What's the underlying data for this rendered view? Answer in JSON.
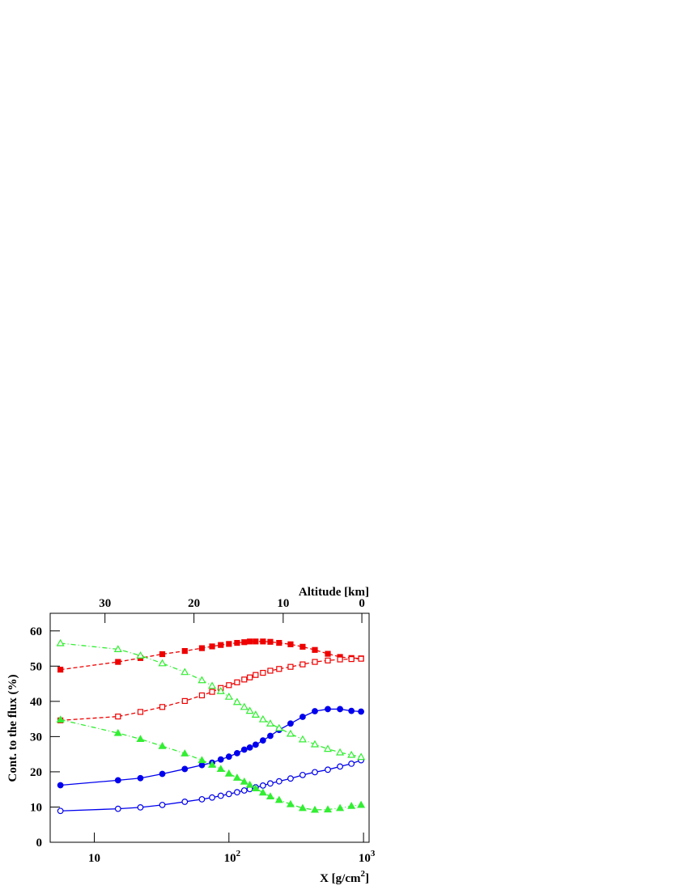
{
  "chart_data": {
    "type": "line",
    "xlabel": "X [g/cm^2]",
    "ylabel": "Cont. to the flux (%)",
    "x2label": "Altitude [km]",
    "xscale": "log",
    "xlim": [
      4.7,
      1100
    ],
    "xticks": [
      10,
      {
        "value": 100,
        "label": "10^2"
      },
      {
        "value": 1000,
        "label": "10^3"
      }
    ],
    "ylim": [
      0,
      65
    ],
    "yticks": [
      0,
      10,
      20,
      30,
      40,
      50,
      60
    ],
    "x2ticks": [
      30,
      20,
      10,
      0
    ],
    "x2ticks_at": [
      12,
      55,
      253,
      972
    ],
    "x": [
      5.6,
      15,
      22,
      32,
      47,
      63,
      75,
      87,
      100,
      115,
      130,
      143,
      158,
      179,
      203,
      236,
      287,
      353,
      435,
      543,
      669,
      813,
      959
    ],
    "series": [
      {
        "color": "#0000ee",
        "dash": "solid",
        "marker": "circle",
        "filled": true,
        "values": [
          16.2,
          17.6,
          18.2,
          19.4,
          20.8,
          21.9,
          22.6,
          23.5,
          24.3,
          25.3,
          26.3,
          26.9,
          27.7,
          28.9,
          30.2,
          31.9,
          33.7,
          35.6,
          37.2,
          37.8,
          37.8,
          37.3,
          37.1
        ]
      },
      {
        "color": "#0000ee",
        "dash": "solid",
        "marker": "circle",
        "filled": false,
        "values": [
          8.9,
          9.5,
          9.9,
          10.6,
          11.5,
          12.2,
          12.7,
          13.2,
          13.7,
          14.2,
          14.7,
          15.1,
          15.6,
          16.1,
          16.7,
          17.3,
          18.1,
          19.1,
          19.9,
          20.6,
          21.5,
          22.3,
          23.3
        ]
      },
      {
        "color": "#ee0000",
        "dash": "dashed",
        "marker": "square",
        "filled": true,
        "values": [
          49,
          51.2,
          52.3,
          53.4,
          54.3,
          55.1,
          55.6,
          56,
          56.3,
          56.6,
          56.8,
          57,
          57,
          57,
          56.9,
          56.6,
          56.2,
          55.5,
          54.6,
          53.5,
          52.6,
          52.3,
          52.2
        ]
      },
      {
        "color": "#ee0000",
        "dash": "dashed",
        "marker": "square",
        "filled": false,
        "values": [
          34.6,
          35.7,
          37,
          38.4,
          40.1,
          41.7,
          42.7,
          43.8,
          44.6,
          45.4,
          46.2,
          46.8,
          47.5,
          48.1,
          48.7,
          49.2,
          49.8,
          50.5,
          51.2,
          51.6,
          51.9,
          52,
          52.1
        ]
      },
      {
        "color": "#33ee33",
        "dash": "dashdot",
        "marker": "triangle",
        "filled": false,
        "values": [
          56.5,
          54.8,
          53,
          50.8,
          48.3,
          46,
          44.4,
          42.9,
          41.3,
          39.8,
          38.4,
          37.3,
          36.2,
          34.9,
          33.7,
          32.4,
          30.8,
          29.2,
          27.8,
          26.5,
          25.5,
          24.8,
          24.2
        ]
      },
      {
        "color": "#33ee33",
        "dash": "dashdot",
        "marker": "triangle",
        "filled": true,
        "values": [
          34.8,
          31,
          29.3,
          27.3,
          25.2,
          23.3,
          22,
          20.8,
          19.5,
          18.3,
          17.2,
          16.3,
          15.3,
          14.1,
          13,
          12,
          10.8,
          9.7,
          9.2,
          9.3,
          9.7,
          10.3,
          10.6
        ]
      }
    ]
  }
}
